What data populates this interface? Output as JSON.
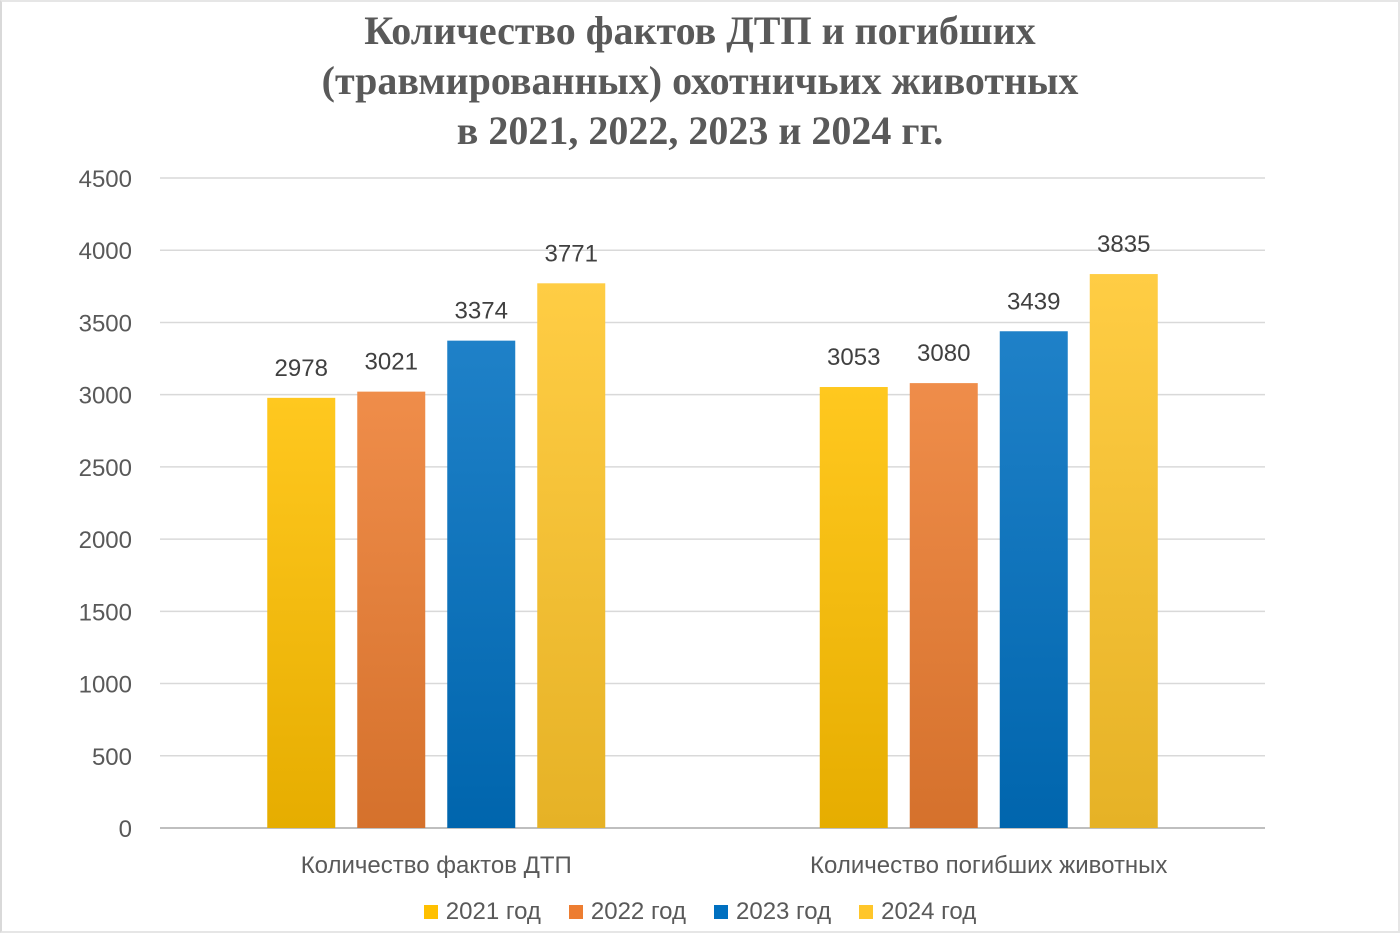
{
  "chart_data": {
    "type": "bar",
    "title_lines": [
      "Количество фактов ДТП и погибших",
      "(травмированных) охотничьих животных",
      "в 2021, 2022, 2023 и 2024 гг."
    ],
    "categories": [
      "Количество фактов ДТП",
      "Количество погибших животных"
    ],
    "series": [
      {
        "name": "2021 год",
        "values": [
          2978,
          3053
        ],
        "color": "#FFC000"
      },
      {
        "name": "2022 год",
        "values": [
          3021,
          3080
        ],
        "color": "#ED7D31"
      },
      {
        "name": "2023 год",
        "values": [
          3374,
          3439
        ],
        "color": "#0070C0"
      },
      {
        "name": "2024 год",
        "values": [
          3771,
          3835
        ],
        "color": "#FFC62A"
      }
    ],
    "ylim": [
      0,
      4500
    ],
    "yticks": [
      0,
      500,
      1000,
      1500,
      2000,
      2500,
      3000,
      3500,
      4000,
      4500
    ],
    "grid": true,
    "legend_position": "bottom",
    "data_labels": true
  }
}
